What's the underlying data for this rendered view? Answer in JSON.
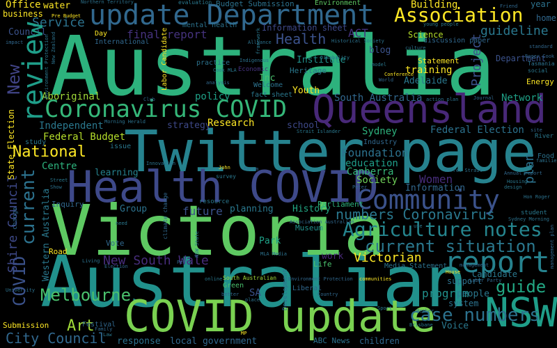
{
  "cloud": {
    "background": "#000000",
    "palette": [
      "#440154",
      "#46327e",
      "#365c8d",
      "#277f8e",
      "#1fa187",
      "#4ac16d",
      "#a0da39",
      "#fde725"
    ],
    "words": [
      {
        "text": "Australia",
        "color": "#2db27d"
      },
      {
        "text": "Australian",
        "color": "#21918c"
      },
      {
        "text": "Victoria",
        "color": "#5ec962"
      },
      {
        "text": "Twitter page",
        "color": "#26828e"
      },
      {
        "text": "Queensland",
        "color": "#482878"
      },
      {
        "text": "Health COVID",
        "color": "#3e4989"
      },
      {
        "text": "COVID update",
        "color": "#7ad151"
      },
      {
        "text": "update Department",
        "color": "#31688e"
      },
      {
        "text": "Coronavirus COVID",
        "color": "#35b779"
      },
      {
        "text": "NSW",
        "color": "#1f9e89"
      },
      {
        "text": "Community",
        "color": "#3b528b"
      },
      {
        "text": "report",
        "color": "#26828e"
      },
      {
        "text": "review",
        "color": "#1f9e89"
      },
      {
        "text": "Association",
        "color": "#fde725"
      },
      {
        "text": "Agriculture notes",
        "color": "#25858e"
      },
      {
        "text": "current situation",
        "color": "#2a788e"
      },
      {
        "text": "Melbourne",
        "color": "#4ac16d"
      },
      {
        "text": "case numbers",
        "color": "#2c728e"
      },
      {
        "text": "guide",
        "color": "#22a884"
      },
      {
        "text": "numbers Coronavirus",
        "color": "#2a788e"
      },
      {
        "text": "City Council",
        "color": "#31688e"
      },
      {
        "text": "current",
        "color": "#2c728e"
      },
      {
        "text": "COVID",
        "color": "#3b528b"
      },
      {
        "text": "National",
        "color": "#fde725"
      },
      {
        "text": "New South Wale",
        "color": "#472d7b"
      },
      {
        "text": "Victorian",
        "color": "#fde725"
      },
      {
        "text": "Health",
        "color": "#3b528b"
      },
      {
        "text": "Art",
        "color": "#a0da39"
      },
      {
        "text": "New",
        "color": "#414487"
      },
      {
        "text": "Shire Council",
        "color": "#3e4989"
      },
      {
        "text": "Service",
        "color": "#2c728e"
      },
      {
        "text": "ACT",
        "color": "#46337f"
      },
      {
        "text": "guideline",
        "color": "#2a788e"
      },
      {
        "text": "Women",
        "color": "#472d7b"
      },
      {
        "text": "Project",
        "color": "#3b528b"
      },
      {
        "text": "program",
        "color": "#21918c"
      },
      {
        "text": "people",
        "color": "#2a788e"
      },
      {
        "text": "Foundation",
        "color": "#2c728e"
      },
      {
        "text": "Canberra",
        "color": "#35b779"
      },
      {
        "text": "Society",
        "color": "#6ece58"
      },
      {
        "text": "education",
        "color": "#1f9e89"
      },
      {
        "text": "Information",
        "color": "#31688e"
      },
      {
        "text": "Sydney",
        "color": "#2db27d"
      },
      {
        "text": "Federal Election",
        "color": "#2c728e"
      },
      {
        "text": "Federal Budget",
        "color": "#b5de2b"
      },
      {
        "text": "Independent",
        "color": "#2a788e"
      },
      {
        "text": "strategy",
        "color": "#3e4989"
      },
      {
        "text": "Research",
        "color": "#fde725"
      },
      {
        "text": "Aboriginal",
        "color": "#a0da39"
      },
      {
        "text": "policy",
        "color": "#1fa187"
      },
      {
        "text": "final report",
        "color": "#46337f"
      },
      {
        "text": "Centre",
        "color": "#2db27d"
      },
      {
        "text": "learning",
        "color": "#26828e"
      },
      {
        "text": "future",
        "color": "#3b528b"
      },
      {
        "text": "Group",
        "color": "#2c728e"
      },
      {
        "text": "planning",
        "color": "#2a788e"
      },
      {
        "text": "History",
        "color": "#22a884"
      },
      {
        "text": "Park",
        "color": "#1fa187"
      },
      {
        "text": "work",
        "color": "#482878"
      },
      {
        "text": "school",
        "color": "#3e4989"
      },
      {
        "text": "Network",
        "color": "#1fa187"
      },
      {
        "text": "South Australia",
        "color": "#31688e"
      },
      {
        "text": "Adelaide",
        "color": "#2a788e"
      },
      {
        "text": "training",
        "color": "#fde725"
      },
      {
        "text": "blog",
        "color": "#3b528b"
      },
      {
        "text": "Institute",
        "color": "#21918c"
      },
      {
        "text": "Inc",
        "color": "#4ac16d"
      },
      {
        "text": "Youth",
        "color": "#fde725"
      },
      {
        "text": "Building",
        "color": "#fde725"
      },
      {
        "text": "Environment",
        "color": "#5ec962"
      },
      {
        "text": "Information sheet",
        "color": "#3e4989"
      },
      {
        "text": "Science",
        "color": "#b5de2b"
      },
      {
        "text": "Department",
        "color": "#3b528b"
      },
      {
        "text": "Office",
        "color": "#fde725"
      },
      {
        "text": "water",
        "color": "#fde725"
      },
      {
        "text": "business",
        "color": "#fde725"
      },
      {
        "text": "Council",
        "color": "#3b528b"
      },
      {
        "text": "Budget Submission",
        "color": "#2c728e"
      },
      {
        "text": "year",
        "color": "#2c728e"
      },
      {
        "text": "home",
        "color": "#31688e"
      },
      {
        "text": "Heritage",
        "color": "#2a788e"
      },
      {
        "text": "Statement",
        "color": "#fde725"
      },
      {
        "text": "Energy",
        "color": "#fde725"
      },
      {
        "text": "Candidate",
        "color": "#2a788e"
      },
      {
        "text": "support",
        "color": "#2c728e"
      },
      {
        "text": "system",
        "color": "#2c728e"
      },
      {
        "text": "Voice",
        "color": "#2a788e"
      },
      {
        "text": "children",
        "color": "#31688e"
      },
      {
        "text": "response",
        "color": "#2c728e"
      },
      {
        "text": "local government",
        "color": "#31688e"
      },
      {
        "text": "Submission",
        "color": "#fde725"
      },
      {
        "text": "plan",
        "color": "#2c728e"
      },
      {
        "text": "Western Australia",
        "color": "#2a788e"
      },
      {
        "text": "Vote",
        "color": "#31688e"
      },
      {
        "text": "Museum",
        "color": "#21918c"
      },
      {
        "text": "Parliament",
        "color": "#2db27d"
      },
      {
        "text": "Media Statement",
        "color": "#2c728e"
      },
      {
        "text": "Road",
        "color": "#fde725"
      },
      {
        "text": "Festival",
        "color": "#31688e"
      },
      {
        "text": "ABC News",
        "color": "#2c728e"
      },
      {
        "text": "Inquiry",
        "color": "#31688e"
      },
      {
        "text": "issue",
        "color": "#2a788e"
      },
      {
        "text": "Life",
        "color": "#4ac16d"
      },
      {
        "text": "resource",
        "color": "#2a788e"
      },
      {
        "text": "Green",
        "color": "#4ac16d"
      },
      {
        "text": "SA",
        "color": "#3b528b"
      },
      {
        "text": "Liberal",
        "color": "#31688e"
      },
      {
        "text": "Welcome",
        "color": "#2c728e"
      },
      {
        "text": "practice",
        "color": "#2c728e"
      },
      {
        "text": "fact sheet",
        "color": "#2a788e"
      },
      {
        "text": "Industry",
        "color": "#31688e"
      },
      {
        "text": "study",
        "color": "#2a788e"
      },
      {
        "text": "International",
        "color": "#31688e"
      },
      {
        "text": "mental health",
        "color": "#2c728e"
      },
      {
        "text": "Day",
        "color": "#fde725"
      },
      {
        "text": "Northern Territory",
        "color": "#2c728e"
      },
      {
        "text": "evaluation",
        "color": "#2a788e"
      },
      {
        "text": "Friend",
        "color": "#31688e"
      },
      {
        "text": "young people",
        "color": "#2a788e"
      },
      {
        "text": "Historical Society",
        "color": "#2c728e"
      },
      {
        "text": "discussion paper",
        "color": "#31688e"
      },
      {
        "text": "Disability",
        "color": "#2a788e"
      },
      {
        "text": "Conference",
        "color": "#fde725"
      },
      {
        "text": "Roger Cook",
        "color": "#31688e"
      },
      {
        "text": "Tasmania",
        "color": "#2c728e"
      },
      {
        "text": "social",
        "color": "#2a788e"
      },
      {
        "text": "World",
        "color": "#31688e"
      },
      {
        "text": "action plan",
        "color": "#2c728e"
      },
      {
        "text": "Journal",
        "color": "#31688e"
      },
      {
        "text": "Food",
        "color": "#2c728e"
      },
      {
        "text": "River",
        "color": "#2a788e"
      },
      {
        "text": "Torres Strait",
        "color": "#2c728e"
      },
      {
        "text": "Annual report",
        "color": "#31688e"
      },
      {
        "text": "student",
        "color": "#2a788e"
      },
      {
        "text": "Sydney Morning",
        "color": "#2c728e"
      },
      {
        "text": "management plan",
        "color": "#31688e"
      },
      {
        "text": "Strait Islander",
        "color": "#2a788e"
      },
      {
        "text": "Morning Herald",
        "color": "#2c728e"
      },
      {
        "text": "Forum",
        "color": "#31688e"
      },
      {
        "text": "John",
        "color": "#fde725"
      },
      {
        "text": "survey",
        "color": "#2a788e"
      },
      {
        "text": "Peter",
        "color": "#31688e"
      },
      {
        "text": "Innovation",
        "color": "#2c728e"
      },
      {
        "text": "climate change",
        "color": "#31688e"
      },
      {
        "text": "NSW State",
        "color": "#2a788e"
      },
      {
        "text": "MLA Media",
        "color": "#2c728e"
      },
      {
        "text": "Perth",
        "color": "#31688e"
      },
      {
        "text": "online",
        "color": "#2a788e"
      },
      {
        "text": "Development",
        "color": "#2c728e"
      },
      {
        "text": "South Australian",
        "color": "#a0da39"
      },
      {
        "text": "Country",
        "color": "#31688e"
      },
      {
        "text": "Sport",
        "color": "#2a788e"
      },
      {
        "text": "Member",
        "color": "#2c728e"
      },
      {
        "text": "House",
        "color": "#fde725"
      },
      {
        "text": "Labor Party",
        "color": "#31688e"
      },
      {
        "text": "Brisbane",
        "color": "#2a788e"
      },
      {
        "text": "communities",
        "color": "#fde725"
      },
      {
        "text": "MP",
        "color": "#fde725"
      },
      {
        "text": "Living",
        "color": "#2c728e"
      },
      {
        "text": "Election",
        "color": "#31688e"
      },
      {
        "text": "Street",
        "color": "#2a788e"
      },
      {
        "text": "Show",
        "color": "#2c728e"
      },
      {
        "text": "Family",
        "color": "#31688e"
      },
      {
        "text": "need",
        "color": "#2a788e"
      },
      {
        "text": "Pre Budget",
        "color": "#fde725"
      },
      {
        "text": "New Zealand",
        "color": "#2c728e"
      },
      {
        "text": "impact",
        "color": "#31688e"
      },
      {
        "text": "Labor Candidate",
        "color": "#fde725"
      },
      {
        "text": "framework",
        "color": "#2a788e"
      },
      {
        "text": "Alliance",
        "color": "#2c728e"
      },
      {
        "text": "Club",
        "color": "#31688e"
      },
      {
        "text": "Cook MLA",
        "color": "#2a788e"
      },
      {
        "text": "Economic",
        "color": "#46337f"
      },
      {
        "text": "Indigenous",
        "color": "#2c728e"
      },
      {
        "text": "analysis",
        "color": "#31688e"
      },
      {
        "text": "model",
        "color": "#2a788e"
      },
      {
        "text": "culture",
        "color": "#2c728e"
      },
      {
        "text": "standard",
        "color": "#31688e"
      },
      {
        "text": "State Election",
        "color": "#fde725"
      },
      {
        "text": "Environment Protection",
        "color": "#2a788e"
      },
      {
        "text": "Hon Roger",
        "color": "#31688e"
      },
      {
        "text": "use",
        "color": "#2c728e"
      },
      {
        "text": "Association Australian",
        "color": "#2a788e"
      },
      {
        "text": "place",
        "color": "#31688e"
      },
      {
        "text": "better",
        "color": "#2c728e"
      },
      {
        "text": "Housing",
        "color": "#31688e"
      },
      {
        "text": "change",
        "color": "#2a788e"
      },
      {
        "text": "University",
        "color": "#31688e"
      },
      {
        "text": "Law",
        "color": "#2c728e"
      },
      {
        "text": "site",
        "color": "#2a788e"
      },
      {
        "text": "familie",
        "color": "#31688e"
      },
      {
        "text": "design",
        "color": "#2c728e"
      },
      {
        "text": "management",
        "color": "#2a788e"
      },
      {
        "text": "Regional",
        "color": "#31688e"
      }
    ]
  }
}
